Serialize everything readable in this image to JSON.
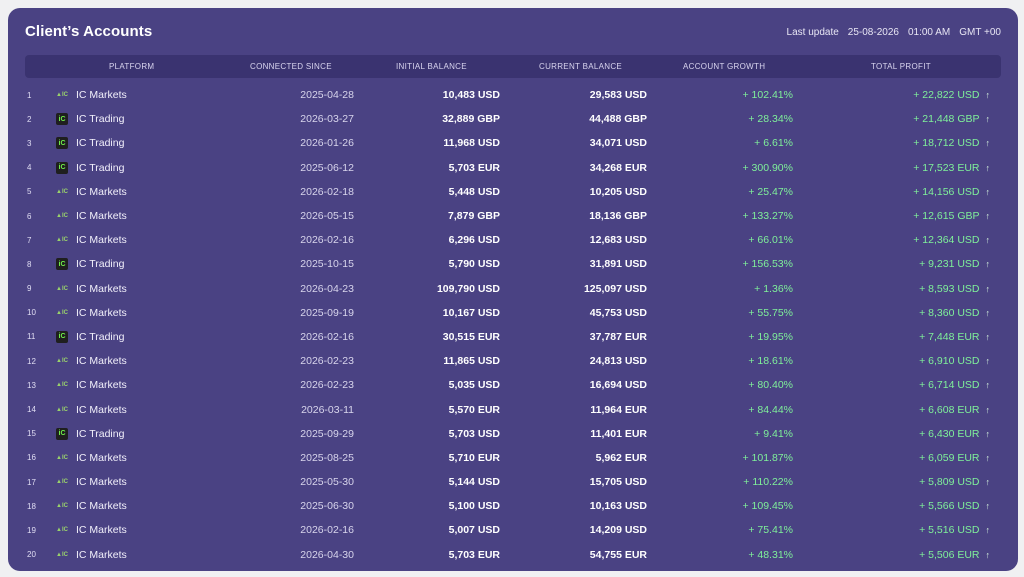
{
  "header": {
    "title": "Client’s Accounts",
    "last_update_label": "Last update",
    "last_update_date": "25-08-2026",
    "last_update_time": "01:00 AM",
    "timezone": "GMT +00"
  },
  "columns": {
    "platform": "PLATFORM",
    "connected_since": "CONNECTED SINCE",
    "initial_balance": "INITIAL BALANCE",
    "current_balance": "CURRENT BALANCE",
    "account_growth": "ACCOUNT GROWTH",
    "total_profit": "TOTAL PROFIT"
  },
  "colors": {
    "panel": "#4a4283",
    "header_bar": "#3a3370",
    "positive": "#7ff09a"
  },
  "rows": [
    {
      "num": "1",
      "icon": "ic-markets-logo",
      "platform": "IC Markets",
      "date": "2025-04-28",
      "initial": "10,483 USD",
      "current": "29,583 USD",
      "growth": "+ 102.41%",
      "profit": "+ 22,822 USD",
      "arrow": "↑"
    },
    {
      "num": "2",
      "icon": "ic-trading-logo",
      "platform": "IC Trading",
      "date": "2026-03-27",
      "initial": "32,889 GBP",
      "current": "44,488 GBP",
      "growth": "+ 28.34%",
      "profit": "+ 21,448 GBP",
      "arrow": "↑"
    },
    {
      "num": "3",
      "icon": "ic-trading-logo",
      "platform": "IC Trading",
      "date": "2026-01-26",
      "initial": "11,968 USD",
      "current": "34,071 USD",
      "growth": "+ 6.61%",
      "profit": "+ 18,712 USD",
      "arrow": "↑"
    },
    {
      "num": "4",
      "icon": "ic-trading-logo",
      "platform": "IC Trading",
      "date": "2025-06-12",
      "initial": "5,703 EUR",
      "current": "34,268 EUR",
      "growth": "+ 300.90%",
      "profit": "+ 17,523 EUR",
      "arrow": "↑"
    },
    {
      "num": "5",
      "icon": "ic-markets-logo",
      "platform": "IC Markets",
      "date": "2026-02-18",
      "initial": "5,448 USD",
      "current": "10,205 USD",
      "growth": "+ 25.47%",
      "profit": "+ 14,156 USD",
      "arrow": "↑"
    },
    {
      "num": "6",
      "icon": "ic-markets-logo",
      "platform": "IC Markets",
      "date": "2026-05-15",
      "initial": "7,879 GBP",
      "current": "18,136 GBP",
      "growth": "+ 133.27%",
      "profit": "+ 12,615 GBP",
      "arrow": "↑"
    },
    {
      "num": "7",
      "icon": "ic-markets-logo",
      "platform": "IC Markets",
      "date": "2026-02-16",
      "initial": "6,296 USD",
      "current": "12,683 USD",
      "growth": "+ 66.01%",
      "profit": "+ 12,364 USD",
      "arrow": "↑"
    },
    {
      "num": "8",
      "icon": "ic-trading-logo",
      "platform": "IC Trading",
      "date": "2025-10-15",
      "initial": "5,790 USD",
      "current": "31,891 USD",
      "growth": "+ 156.53%",
      "profit": "+ 9,231 USD",
      "arrow": "↑"
    },
    {
      "num": "9",
      "icon": "ic-markets-logo",
      "platform": "IC Markets",
      "date": "2026-04-23",
      "initial": "109,790 USD",
      "current": "125,097 USD",
      "growth": "+ 1.36%",
      "profit": "+ 8,593 USD",
      "arrow": "↑"
    },
    {
      "num": "10",
      "icon": "ic-markets-logo",
      "platform": "IC Markets",
      "date": "2025-09-19",
      "initial": "10,167 USD",
      "current": "45,753 USD",
      "growth": "+ 55.75%",
      "profit": "+ 8,360 USD",
      "arrow": "↑"
    },
    {
      "num": "11",
      "icon": "ic-trading-logo",
      "platform": "IC Trading",
      "date": "2026-02-16",
      "initial": "30,515 EUR",
      "current": "37,787 EUR",
      "growth": "+ 19.95%",
      "profit": "+ 7,448 EUR",
      "arrow": "↑"
    },
    {
      "num": "12",
      "icon": "ic-markets-logo",
      "platform": "IC Markets",
      "date": "2026-02-23",
      "initial": "11,865 USD",
      "current": "24,813 USD",
      "growth": "+ 18.61%",
      "profit": "+ 6,910 USD",
      "arrow": "↑"
    },
    {
      "num": "13",
      "icon": "ic-markets-logo",
      "platform": "IC Markets",
      "date": "2026-02-23",
      "initial": "5,035 USD",
      "current": "16,694 USD",
      "growth": "+ 80.40%",
      "profit": "+ 6,714 USD",
      "arrow": "↑"
    },
    {
      "num": "14",
      "icon": "ic-markets-logo",
      "platform": "IC Markets",
      "date": "2026-03-11",
      "initial": "5,570 EUR",
      "current": "11,964 EUR",
      "growth": "+ 84.44%",
      "profit": "+ 6,608 EUR",
      "arrow": "↑"
    },
    {
      "num": "15",
      "icon": "ic-trading-logo",
      "platform": "IC Trading",
      "date": "2025-09-29",
      "initial": "5,703 USD",
      "current": "11,401 EUR",
      "growth": "+ 9.41%",
      "profit": "+ 6,430 EUR",
      "arrow": "↑"
    },
    {
      "num": "16",
      "icon": "ic-markets-logo",
      "platform": "IC Markets",
      "date": "2025-08-25",
      "initial": "5,710 EUR",
      "current": "5,962 EUR",
      "growth": "+ 101.87%",
      "profit": "+ 6,059 EUR",
      "arrow": "↑"
    },
    {
      "num": "17",
      "icon": "ic-markets-logo",
      "platform": "IC Markets",
      "date": "2025-05-30",
      "initial": "5,144 USD",
      "current": "15,705 USD",
      "growth": "+ 110.22%",
      "profit": "+ 5,809 USD",
      "arrow": "↑"
    },
    {
      "num": "18",
      "icon": "ic-markets-logo",
      "platform": "IC Markets",
      "date": "2025-06-30",
      "initial": "5,100 USD",
      "current": "10,163 USD",
      "growth": "+ 109.45%",
      "profit": "+ 5,566 USD",
      "arrow": "↑"
    },
    {
      "num": "19",
      "icon": "ic-markets-logo",
      "platform": "IC Markets",
      "date": "2026-02-16",
      "initial": "5,007 USD",
      "current": "14,209 USD",
      "growth": "+ 75.41%",
      "profit": "+ 5,516 USD",
      "arrow": "↑"
    },
    {
      "num": "20",
      "icon": "ic-markets-logo",
      "platform": "IC Markets",
      "date": "2026-04-30",
      "initial": "5,703 EUR",
      "current": "54,755 EUR",
      "growth": "+ 48.31%",
      "profit": "+ 5,506 EUR",
      "arrow": "↑"
    }
  ]
}
